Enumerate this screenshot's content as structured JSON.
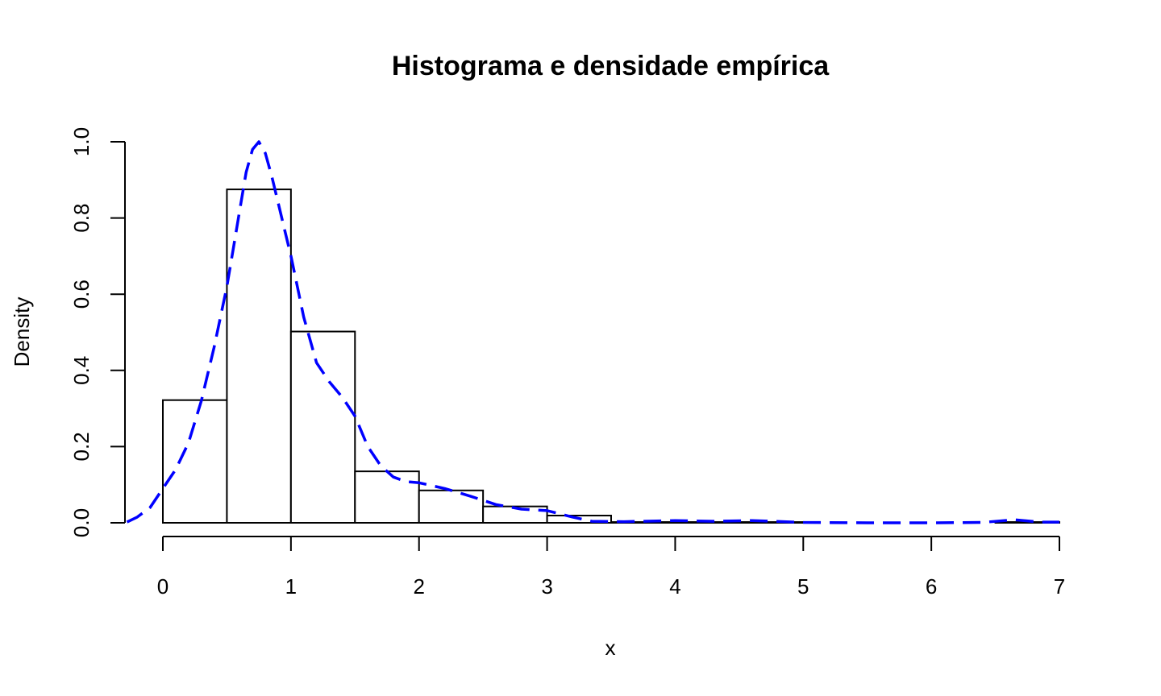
{
  "chart_data": {
    "type": "histogram",
    "title": "Histograma e densidade empírica",
    "xlabel": "x",
    "ylabel": "Density",
    "xlim": [
      -0.28,
      7
    ],
    "ylim": [
      0,
      1.0
    ],
    "x_ticks": [
      0,
      1,
      2,
      3,
      4,
      5,
      6,
      7
    ],
    "y_ticks": [
      0.0,
      0.2,
      0.4,
      0.6,
      0.8,
      1.0
    ],
    "y_tick_labels": [
      "0.0",
      "0.2",
      "0.4",
      "0.6",
      "0.8",
      "1.0"
    ],
    "grid": false,
    "bins": [
      {
        "from": 0.0,
        "to": 0.5,
        "density": 0.322
      },
      {
        "from": 0.5,
        "to": 1.0,
        "density": 0.875
      },
      {
        "from": 1.0,
        "to": 1.5,
        "density": 0.502
      },
      {
        "from": 1.5,
        "to": 2.0,
        "density": 0.135
      },
      {
        "from": 2.0,
        "to": 2.5,
        "density": 0.085
      },
      {
        "from": 2.5,
        "to": 3.0,
        "density": 0.043
      },
      {
        "from": 3.0,
        "to": 3.5,
        "density": 0.019
      },
      {
        "from": 3.5,
        "to": 4.0,
        "density": 0.002
      },
      {
        "from": 4.0,
        "to": 4.5,
        "density": 0.002
      },
      {
        "from": 4.5,
        "to": 5.0,
        "density": 0.002
      },
      {
        "from": 5.0,
        "to": 5.5,
        "density": 0.0
      },
      {
        "from": 5.5,
        "to": 6.0,
        "density": 0.0
      },
      {
        "from": 6.0,
        "to": 6.5,
        "density": 0.0
      },
      {
        "from": 6.5,
        "to": 7.0,
        "density": 0.002
      }
    ],
    "density_curve": {
      "color": "#0000ff",
      "line_style": "dashed",
      "x": [
        -0.28,
        -0.2,
        -0.1,
        0.0,
        0.1,
        0.2,
        0.3,
        0.4,
        0.5,
        0.55,
        0.6,
        0.65,
        0.7,
        0.75,
        0.8,
        0.85,
        0.9,
        0.95,
        1.0,
        1.05,
        1.1,
        1.2,
        1.3,
        1.4,
        1.5,
        1.6,
        1.7,
        1.8,
        1.9,
        2.0,
        2.2,
        2.4,
        2.6,
        2.8,
        3.0,
        3.2,
        3.35,
        3.6,
        4.0,
        4.3,
        4.6,
        5.0,
        5.5,
        6.0,
        6.4,
        6.65,
        6.85,
        7.0
      ],
      "y": [
        0.002,
        0.015,
        0.04,
        0.09,
        0.14,
        0.21,
        0.32,
        0.46,
        0.62,
        0.72,
        0.82,
        0.92,
        0.98,
        1.0,
        0.97,
        0.91,
        0.84,
        0.77,
        0.7,
        0.62,
        0.54,
        0.42,
        0.37,
        0.33,
        0.28,
        0.2,
        0.15,
        0.12,
        0.108,
        0.105,
        0.09,
        0.07,
        0.048,
        0.036,
        0.032,
        0.015,
        0.004,
        0.003,
        0.006,
        0.004,
        0.006,
        0.001,
        0.0,
        0.0,
        0.001,
        0.008,
        0.002,
        0.002
      ]
    }
  }
}
